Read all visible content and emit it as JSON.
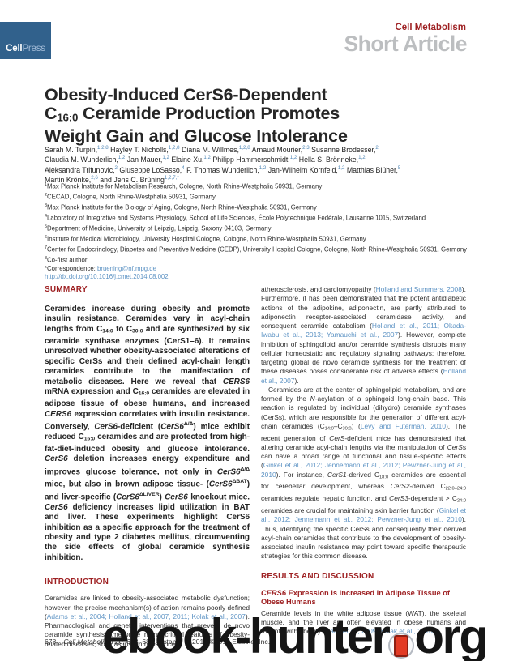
{
  "header": {
    "logo_cell": "Cell",
    "logo_press": "Press",
    "journal": "Cell Metabolism",
    "article_type": "Short Article"
  },
  "title": {
    "lines": [
      [
        {
          "t": "Obesity-Induced CerS6-Dependent"
        }
      ],
      [
        {
          "t": "C"
        },
        {
          "t": "16:0",
          "s": "sub"
        },
        {
          "t": " Ceramide Production Promotes"
        }
      ],
      [
        {
          "t": "Weight Gain and Glucose Intolerance"
        }
      ]
    ]
  },
  "authors": {
    "lines": [
      [
        {
          "t": "Sarah M. Turpin,"
        },
        {
          "t": "1,2,8",
          "s": "sup"
        },
        {
          "t": " Hayley T. Nicholls,"
        },
        {
          "t": "1,2,8",
          "s": "sup"
        },
        {
          "t": " Diana M. Willmes,"
        },
        {
          "t": "1,2,8",
          "s": "sup"
        },
        {
          "t": " Arnaud Mourier,"
        },
        {
          "t": "2,3",
          "s": "sup"
        },
        {
          "t": " Susanne Brodesser,"
        },
        {
          "t": "2",
          "s": "sup"
        }
      ],
      [
        {
          "t": "Claudia M. Wunderlich,"
        },
        {
          "t": "1,2",
          "s": "sup"
        },
        {
          "t": " Jan Mauer,"
        },
        {
          "t": "1,2",
          "s": "sup"
        },
        {
          "t": " Elaine Xu,"
        },
        {
          "t": "1,2",
          "s": "sup"
        },
        {
          "t": " Philipp Hammerschmidt,"
        },
        {
          "t": "1,2",
          "s": "sup"
        },
        {
          "t": " Hella S. Brönneke,"
        },
        {
          "t": "1,2",
          "s": "sup"
        }
      ],
      [
        {
          "t": "Aleksandra Trifunovic,"
        },
        {
          "t": "2",
          "s": "sup"
        },
        {
          "t": " Giuseppe LoSasso,"
        },
        {
          "t": "4",
          "s": "sup"
        },
        {
          "t": " F. Thomas Wunderlich,"
        },
        {
          "t": "1,2",
          "s": "sup"
        },
        {
          "t": " Jan-Wilhelm Kornfeld,"
        },
        {
          "t": "1,2",
          "s": "sup"
        },
        {
          "t": " Matthias Blüher,"
        },
        {
          "t": "5",
          "s": "sup"
        }
      ],
      [
        {
          "t": "Martin Krönke,"
        },
        {
          "t": "2,6",
          "s": "sup"
        },
        {
          "t": " and Jens C. Brüning"
        },
        {
          "t": "1,2,7,*",
          "s": "sup"
        }
      ]
    ]
  },
  "affiliations": {
    "lines": [
      [
        {
          "t": "1",
          "s": "sup"
        },
        {
          "t": "Max Planck Institute for Metabolism Research, Cologne, North Rhine-Westphalia 50931, Germany"
        }
      ],
      [
        {
          "t": "2",
          "s": "sup"
        },
        {
          "t": "CECAD, Cologne, North Rhine-Westphalia 50931, Germany"
        }
      ],
      [
        {
          "t": "3",
          "s": "sup"
        },
        {
          "t": "Max Planck Institute for the Biology of Aging, Cologne, North Rhine-Westphalia 50931, Germany"
        }
      ],
      [
        {
          "t": "4",
          "s": "sup"
        },
        {
          "t": "Laboratory of Integrative and Systems Physiology, School of Life Sciences, École Polytechnique Fédérale, Lausanne 1015, Switzerland"
        }
      ],
      [
        {
          "t": "5",
          "s": "sup"
        },
        {
          "t": "Department of Medicine, University of Leipzig, Leipzig, Saxony 04103, Germany"
        }
      ],
      [
        {
          "t": "6",
          "s": "sup"
        },
        {
          "t": "Institute for Medical Microbiology, University Hospital Cologne, Cologne, North Rhine-Westphalia 50931, Germany"
        }
      ],
      [
        {
          "t": "7",
          "s": "sup"
        },
        {
          "t": "Center for Endocrinology, Diabetes and Preventive Medicine (CEDP), University Hospital Cologne, Cologne, North Rhine-Westphalia 50931, Germany"
        }
      ],
      [
        {
          "t": "8",
          "s": "sup"
        },
        {
          "t": "Co-first author"
        }
      ],
      [
        {
          "t": "*Correspondence: "
        },
        {
          "t": "bruening@nf.mpg.de",
          "s": "link",
          "n": "correspondence-email-link"
        }
      ],
      [
        {
          "t": "http://dx.doi.org/10.1016/j.cmet.2014.08.002",
          "s": "link",
          "n": "doi-link"
        }
      ]
    ]
  },
  "summary": {
    "heading": "SUMMARY",
    "body": [
      {
        "t": "Ceramides increase during obesity and promote insulin resistance. Ceramides vary in acyl-chain lengths from C"
      },
      {
        "t": "14:0",
        "s": "sub"
      },
      {
        "t": " to C"
      },
      {
        "t": "30:0",
        "s": "sub"
      },
      {
        "t": " and are synthesized by six ceramide synthase enzymes (CerS1–6). It remains unresolved whether obesity-associated alterations of specific CerSs and their defined acyl-chain length ceramides contribute to the manifestation of metabolic diseases. Here we reveal that "
      },
      {
        "t": "CERS6",
        "s": "i"
      },
      {
        "t": " mRNA expression and C"
      },
      {
        "t": "16:0",
        "s": "sub"
      },
      {
        "t": " ceramides are elevated in adipose tissue of obese humans, and increased "
      },
      {
        "t": "CERS6",
        "s": "i"
      },
      {
        "t": " expression correlates with insulin resistance. Conversely, "
      },
      {
        "t": "CerS6",
        "s": "i"
      },
      {
        "t": "-deficient ("
      },
      {
        "t": "CerS6",
        "s": "i"
      },
      {
        "t": "Δ/Δ",
        "s": "sup"
      },
      {
        "t": ") mice exhibit reduced C"
      },
      {
        "t": "16:0",
        "s": "sub"
      },
      {
        "t": " ceramides and are protected from high-fat-diet-induced obesity and glucose intolerance. "
      },
      {
        "t": "CerS6",
        "s": "i"
      },
      {
        "t": " deletion increases energy expenditure and improves glucose tolerance, not only in "
      },
      {
        "t": "CerS6",
        "s": "i"
      },
      {
        "t": "Δ/Δ",
        "s": "sup"
      },
      {
        "t": " mice, but also in brown adipose tissue- ("
      },
      {
        "t": "CerS6",
        "s": "i"
      },
      {
        "t": "ΔBAT",
        "s": "sup"
      },
      {
        "t": ") and liver-specific ("
      },
      {
        "t": "CerS6",
        "s": "i"
      },
      {
        "t": "ΔLIVER",
        "s": "sup"
      },
      {
        "t": ") "
      },
      {
        "t": "CerS6",
        "s": "i"
      },
      {
        "t": " knockout mice. "
      },
      {
        "t": "CerS6",
        "s": "i"
      },
      {
        "t": " deficiency increases lipid utilization in BAT and liver. These experiments highlight CerS6 inhibition as a specific approach for the treatment of obesity and type 2 diabetes mellitus, circumventing the side effects of global ceramide synthesis inhibition."
      }
    ]
  },
  "introduction": {
    "heading": "INTRODUCTION",
    "body": [
      {
        "t": "Ceramides are linked to obesity-associated metabolic dysfunction; however, the precise mechanism(s) of action remains poorly defined ("
      },
      {
        "t": "Adams et al., 2004; Holland et al., 2007, 2011; Kolak et al., 2007",
        "s": "link"
      },
      {
        "t": "). Pharmacological and genetic interventions that prevent de novo ceramide synthesis ameliorate many critical features of obesity-related diseases, such as insulin resistance,"
      }
    ]
  },
  "right_column": {
    "para1": [
      {
        "t": "atherosclerosis, and cardiomyopathy ("
      },
      {
        "t": "Holland and Summers, 2008",
        "s": "link"
      },
      {
        "t": "). Furthermore, it has been demonstrated that the potent antidiabetic actions of the adipokine, adiponectin, are partly attributed to adiponectin receptor-associated ceramidase activity, and consequent ceramide catabolism ("
      },
      {
        "t": "Holland et al., 2011; Okada-Iwabu et al., 2013; Yamauchi et al., 2007",
        "s": "link"
      },
      {
        "t": "). However, complete inhibition of sphingolipid and/or ceramide synthesis disrupts many cellular homeostatic and regulatory signaling pathways; therefore, targeting global de novo ceramide synthesis for the treatment of these diseases poses considerable risk of adverse effects ("
      },
      {
        "t": "Holland et al., 2007",
        "s": "link"
      },
      {
        "t": ")."
      }
    ],
    "para2": [
      {
        "t": "Ceramides are at the center of sphingolipid metabolism, and are formed by the "
      },
      {
        "t": "N",
        "s": "i"
      },
      {
        "t": "-acylation of a sphingoid long-chain base. This reaction is regulated by individual (dihydro) ceramide synthases (CerSs), which are responsible for the generation of different acyl-chain ceramides (C"
      },
      {
        "t": "14:0",
        "s": "sub"
      },
      {
        "t": "–C"
      },
      {
        "t": "30:0",
        "s": "sub"
      },
      {
        "t": ") ("
      },
      {
        "t": "Levy and Futerman, 2010",
        "s": "link"
      },
      {
        "t": "). The recent generation of "
      },
      {
        "t": "CerS",
        "s": "i"
      },
      {
        "t": "-deficient mice has demonstrated that altering ceramide acyl-chain lengths via the manipulation of "
      },
      {
        "t": "CerS",
        "s": "i"
      },
      {
        "t": "s can have a broad range of functional and tissue-specific effects ("
      },
      {
        "t": "Ginkel et al., 2012; Jennemann et al., 2012; Pewzner-Jung et al., 2010",
        "s": "link"
      },
      {
        "t": "). For instance, "
      },
      {
        "t": "CerS1",
        "s": "i"
      },
      {
        "t": "-derived C"
      },
      {
        "t": "18:0",
        "s": "sub"
      },
      {
        "t": " ceramides are essential for cerebellar development, whereas "
      },
      {
        "t": "CerS2",
        "s": "i"
      },
      {
        "t": "-derived C"
      },
      {
        "t": "22:0–24:0",
        "s": "sub"
      },
      {
        "t": " ceramides regulate hepatic function, and "
      },
      {
        "t": "CerS3",
        "s": "i"
      },
      {
        "t": "-dependent > C"
      },
      {
        "t": "24:0",
        "s": "sub"
      },
      {
        "t": " ceramides are crucial for maintaining skin barrier function ("
      },
      {
        "t": "Ginkel et al., 2012; Jennemann et al., 2012; Pewzner-Jung et al., 2010",
        "s": "link"
      },
      {
        "t": "). Thus, identifying the specific CerSs and consequently their derived acyl-chain ceramides that contribute to the development of obesity-associated insulin resistance may point toward specific therapeutic strategies for this common disease."
      }
    ],
    "results_heading": "RESULTS AND DISCUSSION",
    "subheading": [
      {
        "t": "CERS6",
        "s": "i"
      },
      {
        "t": " Expression Is Increased in Adipose Tissue of Obese Humans"
      }
    ],
    "para3": [
      {
        "t": "Ceramide levels in the white adipose tissue (WAT), the skeletal muscle, and the liver are often elevated in obese humans and rodents with obesity ("
      },
      {
        "t": "Haus et al., 2009; Kolak et al., 2010;",
        "s": "link"
      }
    ]
  },
  "footer": {
    "page_number": "678",
    "citation": [
      {
        "t": "Cell Metabolism 20,",
        "s": "i"
      },
      {
        "t": " 678–686, October 7, 2014 ©2014 Elsevier Inc."
      }
    ]
  },
  "watermark": {
    "left": "ebook-hunter",
    "right": "org",
    "icon": "red-book-icon"
  },
  "colors": {
    "accent_red": "#9e2123",
    "link_blue": "#5d93c4",
    "logo_blue": "#31618c",
    "article_type_gray": "#bcbec0",
    "watermark_black": "#151515",
    "watermark_icon_red": "#e23b25"
  }
}
